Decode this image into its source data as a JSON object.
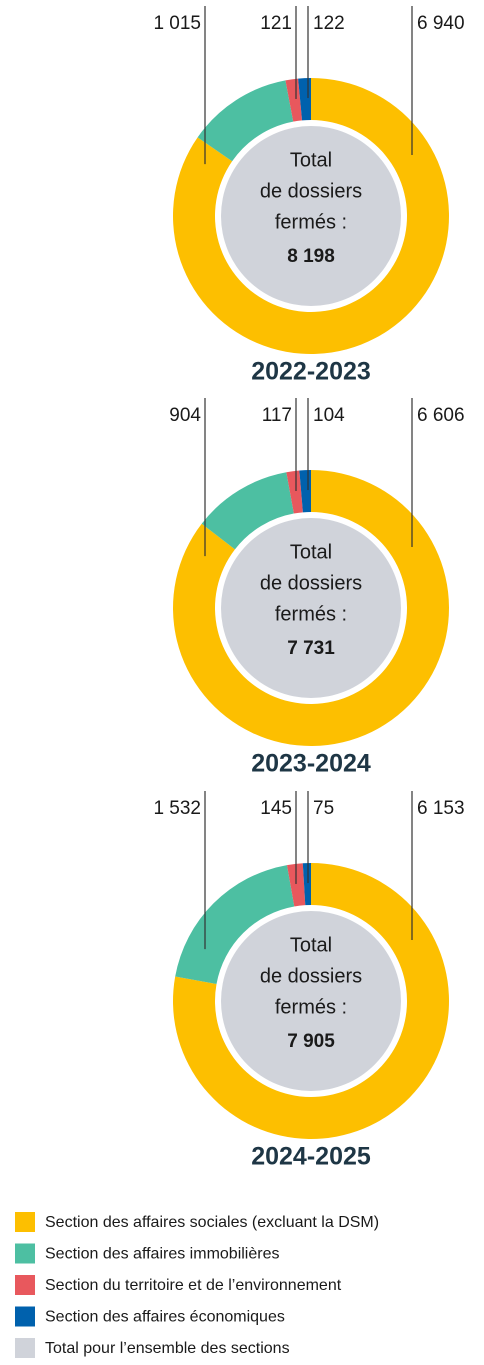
{
  "chart_data": [
    {
      "type": "pie",
      "title": "2022-2023",
      "values": [
        6940,
        1015,
        121,
        122
      ],
      "value_labels": [
        "6 940",
        "1 015",
        "121",
        "122"
      ],
      "center_label": [
        "Total",
        "de dossiers",
        "fermés :"
      ],
      "total": 8198,
      "total_label": "8 198"
    },
    {
      "type": "pie",
      "title": "2023-2024",
      "values": [
        6606,
        904,
        117,
        104
      ],
      "value_labels": [
        "6 606",
        "904",
        "117",
        "104"
      ],
      "center_label": [
        "Total",
        "de dossiers",
        "fermés :"
      ],
      "total": 7731,
      "total_label": "7 731"
    },
    {
      "type": "pie",
      "title": "2024-2025",
      "values": [
        6153,
        1532,
        145,
        75
      ],
      "value_labels": [
        "6 153",
        "1 532",
        "145",
        "75"
      ],
      "center_label": [
        "Total",
        "de dossiers",
        "fermés :"
      ],
      "total": 7905,
      "total_label": "7 905"
    }
  ],
  "legend": [
    {
      "name": "Section des affaires sociales (excluant la DSM)",
      "color": "#fdbf00"
    },
    {
      "name": "Section des affaires immobilières",
      "color": "#4dbfa2"
    },
    {
      "name": "Section du territoire et de l’environnement",
      "color": "#e8585d"
    },
    {
      "name": "Section des affaires économiques",
      "color": "#0061ad"
    },
    {
      "name": "Total pour l’ensemble des sections",
      "color": "#d0d3da"
    }
  ]
}
